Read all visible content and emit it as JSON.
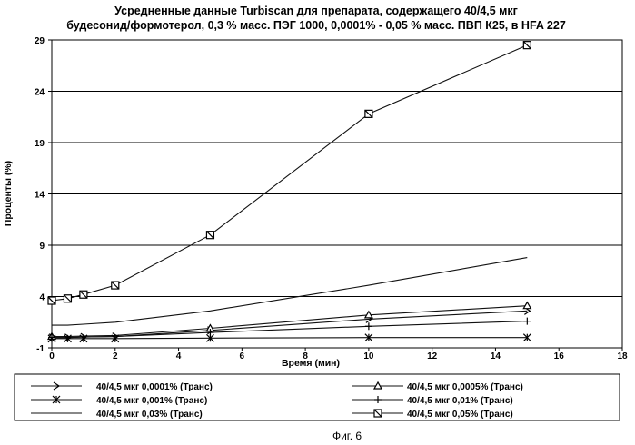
{
  "caption": "Фиг. 6",
  "chart_data": {
    "type": "line",
    "title_lines": [
      "Усредненные данные Turbiscan для препарата, содержащего 40/4,5 мкг",
      "будесонид/формотерол, 0,3 % масс. ПЭГ 1000, 0,0001% - 0,05 % масс. ПВП К25, в HFA 227"
    ],
    "xlabel": "Время (мин)",
    "ylabel": "Проценты (%)",
    "xlim": [
      0,
      18
    ],
    "ylim": [
      -1,
      29
    ],
    "xticks": [
      0,
      2,
      4,
      6,
      8,
      10,
      12,
      14,
      16,
      18
    ],
    "yticks": [
      -1,
      4,
      9,
      14,
      19,
      24,
      29
    ],
    "grid": "horizontal",
    "legend_position": "bottom",
    "series": [
      {
        "name": "40/4,5 мкг 0,0001% (Транс)",
        "marker": "arrow",
        "x": [
          0,
          0.5,
          1,
          2,
          5,
          10,
          15
        ],
        "y": [
          0.0,
          0.0,
          0.05,
          0.1,
          0.7,
          1.8,
          2.6
        ]
      },
      {
        "name": "40/4,5 мкг 0,0005% (Транс)",
        "marker": "triangle",
        "x": [
          0,
          0.5,
          1,
          2,
          5,
          10,
          15
        ],
        "y": [
          0.1,
          0.1,
          0.15,
          0.2,
          0.9,
          2.2,
          3.1
        ]
      },
      {
        "name": "40/4,5 мкг 0,001% (Транс)",
        "marker": "asterisk",
        "x": [
          0,
          0.5,
          1,
          2,
          5,
          10,
          15
        ],
        "y": [
          -0.1,
          -0.1,
          -0.1,
          -0.1,
          -0.05,
          0.0,
          0.0
        ]
      },
      {
        "name": "40/4,5 мкг 0,01% (Транс)",
        "marker": "plus",
        "x": [
          0,
          0.5,
          1,
          2,
          5,
          10,
          15
        ],
        "y": [
          0.0,
          0.0,
          0.05,
          0.1,
          0.5,
          1.1,
          1.6
        ]
      },
      {
        "name": "40/4,5 мкг 0,03% (Транс)",
        "marker": "none",
        "x": [
          0,
          0.5,
          1,
          2,
          5,
          10,
          15
        ],
        "y": [
          1.2,
          1.2,
          1.3,
          1.5,
          2.6,
          5.1,
          7.8
        ]
      },
      {
        "name": "40/4,5 мкг 0,05% (Транс)",
        "marker": "square",
        "x": [
          0,
          0.5,
          1,
          2,
          5,
          10,
          15
        ],
        "y": [
          3.6,
          3.8,
          4.2,
          5.1,
          10.0,
          21.8,
          28.5
        ]
      }
    ]
  }
}
